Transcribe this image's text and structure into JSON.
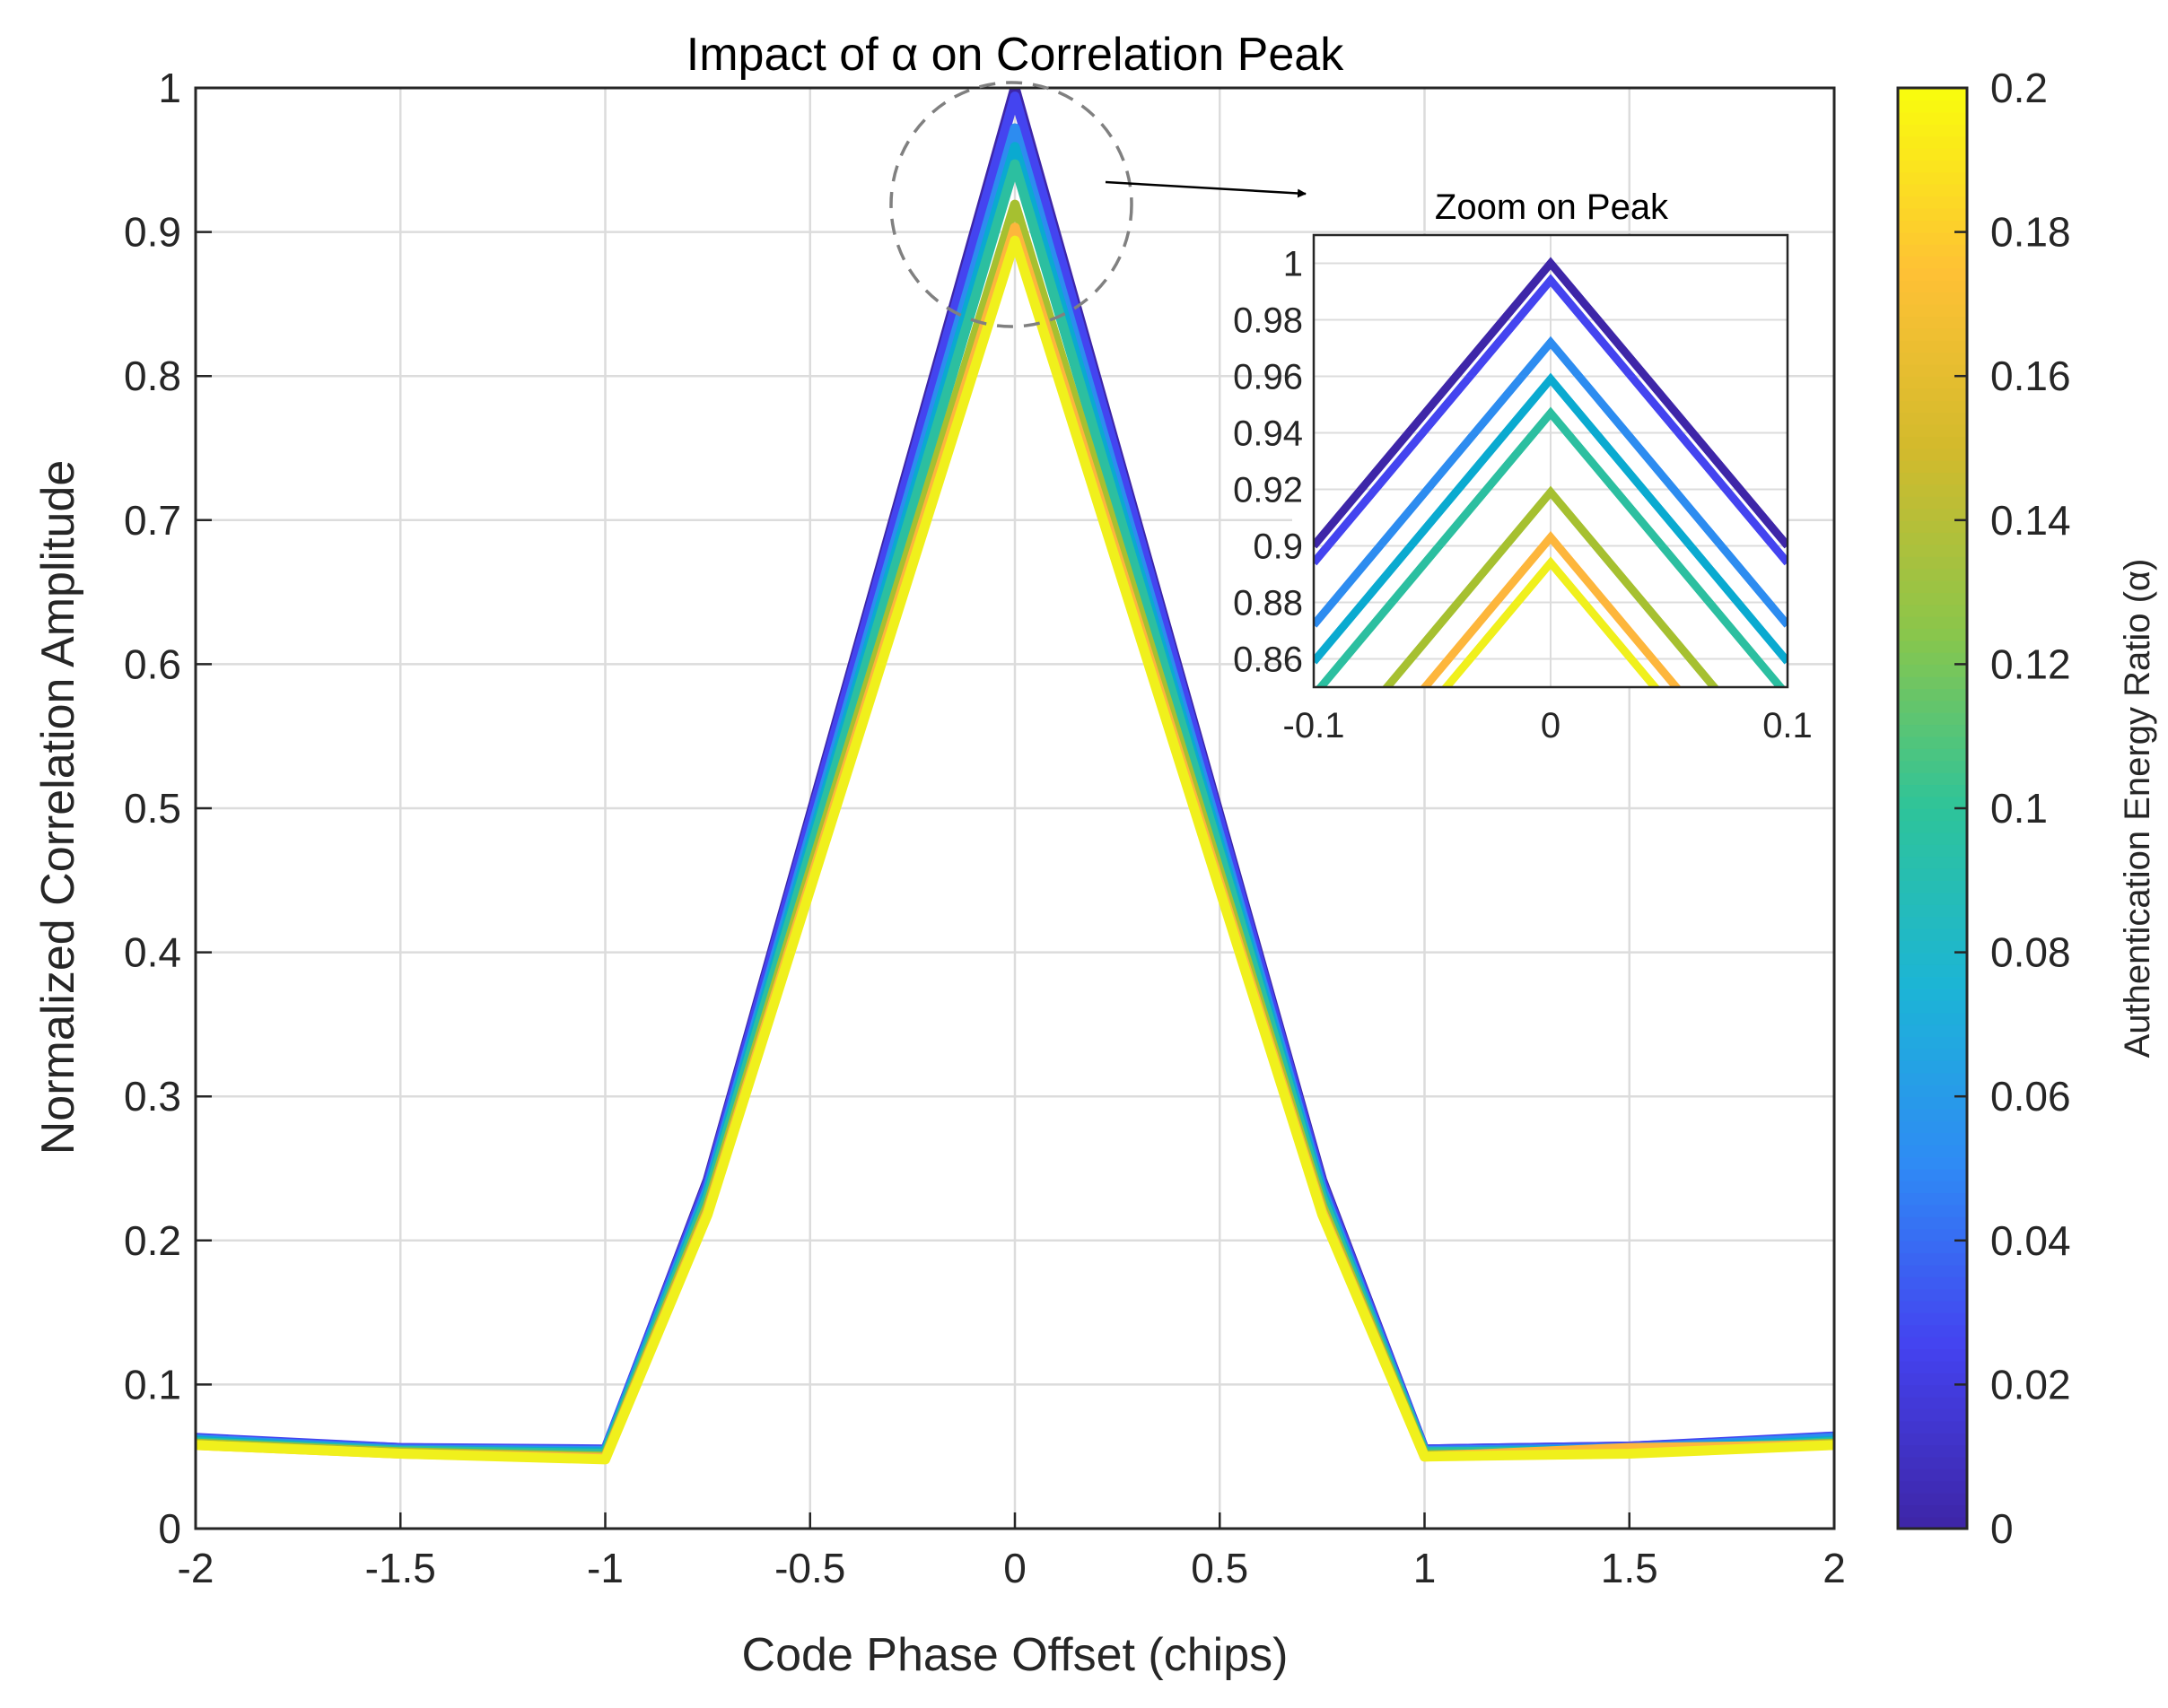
{
  "chart_data": [
    {
      "type": "line",
      "title": "Impact of α on Correlation Peak",
      "xlabel": "Code Phase Offset (chips)",
      "ylabel": "Normalized Correlation Amplitude",
      "xlim": [
        -2,
        2
      ],
      "ylim": [
        0,
        1
      ],
      "xticks": [
        "-2",
        "-1.5",
        "-1",
        "-0.5",
        "0",
        "0.5",
        "1",
        "1.5",
        "2"
      ],
      "yticks": [
        "0",
        "0.1",
        "0.2",
        "0.3",
        "0.4",
        "0.5",
        "0.6",
        "0.7",
        "0.8",
        "0.9",
        "1"
      ],
      "grid": true,
      "x": [
        -2,
        -1.5,
        -1,
        -0.75,
        0,
        0.75,
        1,
        1.5,
        2
      ],
      "series": [
        {
          "name": "α = 0",
          "alpha": 0,
          "color": "#3E26A8",
          "values": [
            0.062,
            0.056,
            0.054,
            0.242,
            1.0,
            0.242,
            0.055,
            0.057,
            0.063
          ]
        },
        {
          "name": "α = 0.02",
          "alpha": 0.02,
          "color": "#4444F0",
          "values": [
            0.063,
            0.056,
            0.055,
            0.24,
            0.994,
            0.24,
            0.055,
            0.057,
            0.064
          ]
        },
        {
          "name": "α = 0.05",
          "alpha": 0.05,
          "color": "#2D8CF0",
          "values": [
            0.062,
            0.055,
            0.054,
            0.236,
            0.972,
            0.236,
            0.054,
            0.056,
            0.063
          ]
        },
        {
          "name": "α = 0.07",
          "alpha": 0.07,
          "color": "#0AAAD0",
          "values": [
            0.061,
            0.054,
            0.053,
            0.233,
            0.959,
            0.233,
            0.053,
            0.055,
            0.061
          ]
        },
        {
          "name": "α = 0.09",
          "alpha": 0.09,
          "color": "#2CBFA0",
          "values": [
            0.06,
            0.054,
            0.052,
            0.23,
            0.947,
            0.23,
            0.053,
            0.054,
            0.06
          ]
        },
        {
          "name": "α = 0.14",
          "alpha": 0.14,
          "color": "#A6C030",
          "values": [
            0.059,
            0.053,
            0.05,
            0.224,
            0.919,
            0.224,
            0.051,
            0.053,
            0.059
          ]
        },
        {
          "name": "α = 0.17",
          "alpha": 0.17,
          "color": "#FDB63C",
          "values": [
            0.058,
            0.052,
            0.049,
            0.22,
            0.903,
            0.22,
            0.05,
            0.056,
            0.058
          ]
        },
        {
          "name": "α = 0.19",
          "alpha": 0.19,
          "color": "#F0F01C",
          "values": [
            0.058,
            0.052,
            0.048,
            0.218,
            0.894,
            0.218,
            0.05,
            0.052,
            0.058
          ]
        }
      ],
      "annotation": "Zoom on Peak"
    },
    {
      "type": "line",
      "title": "Zoom on Peak",
      "xlim": [
        -0.1,
        0.1
      ],
      "ylim": [
        0.85,
        1.01
      ],
      "xticks": [
        "-0.1",
        "0",
        "0.1"
      ],
      "yticks": [
        "0.86",
        "0.88",
        "0.9",
        "0.92",
        "0.94",
        "0.96",
        "0.98",
        "1"
      ],
      "grid": true,
      "slope": 1.0
    }
  ],
  "colorbar": {
    "label": "Authentication Energy Ratio (α)",
    "range": [
      0,
      0.2
    ],
    "ticks": [
      "0",
      "0.02",
      "0.04",
      "0.06",
      "0.08",
      "0.1",
      "0.12",
      "0.14",
      "0.16",
      "0.18",
      "0.2"
    ],
    "colors": [
      "#3E26A8",
      "#4443F0",
      "#2F8AF5",
      "#1CB5D6",
      "#2EC49A",
      "#8BC64A",
      "#D2BA2C",
      "#FEC135",
      "#F9FB0E"
    ]
  }
}
